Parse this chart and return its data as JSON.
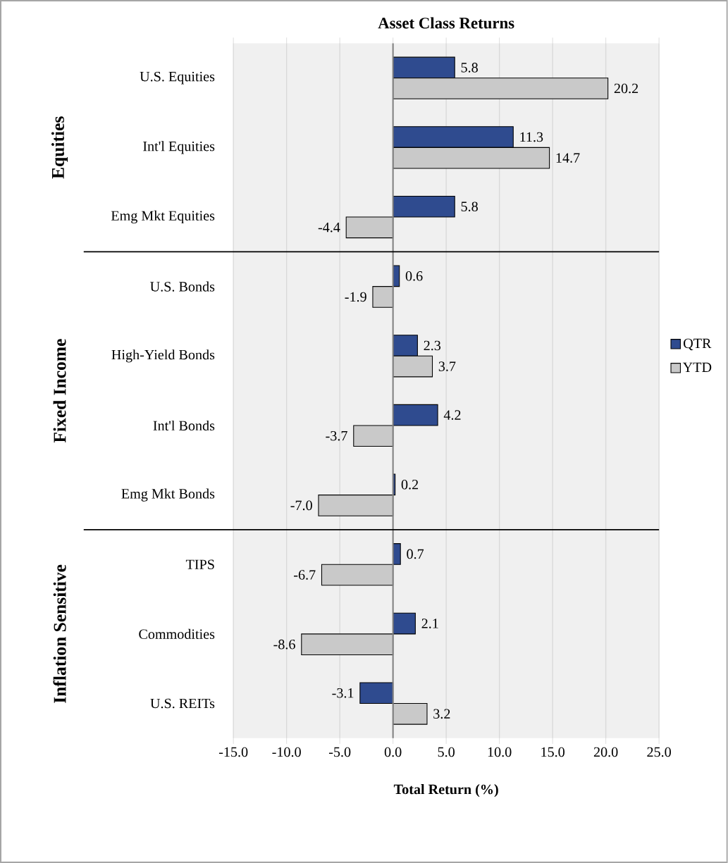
{
  "chart_data": {
    "type": "bar",
    "orientation": "horizontal",
    "title": "Asset Class Returns",
    "xlabel": "Total Return (%)",
    "categories": [
      "U.S. Equities",
      "Int'l Equities",
      "Emg Mkt Equities",
      "U.S. Bonds",
      "High-Yield Bonds",
      "Int'l Bonds",
      "Emg Mkt Bonds",
      "TIPS",
      "Commodities",
      "U.S. REITs"
    ],
    "series": [
      {
        "name": "QTR",
        "color": "#2f4b8f",
        "values": [
          5.8,
          11.3,
          5.8,
          0.6,
          2.3,
          4.2,
          0.2,
          0.7,
          2.1,
          -3.1
        ],
        "value_labels": [
          "5.8",
          "11.3",
          "5.8",
          "0.6",
          "2.3",
          "4.2",
          "0.2",
          "0.7",
          "2.1",
          "-3.1"
        ]
      },
      {
        "name": "YTD",
        "color": "#c9c9c9",
        "values": [
          20.2,
          14.7,
          -4.4,
          -1.9,
          3.7,
          -3.7,
          -7.0,
          -6.7,
          -8.6,
          3.2
        ],
        "value_labels": [
          "20.2",
          "14.7",
          "-4.4",
          "-1.9",
          "3.7",
          "-3.7",
          "-7.0",
          "-6.7",
          "-8.6",
          "3.2"
        ]
      }
    ],
    "xlim": [
      -15,
      25
    ],
    "xticks": [
      {
        "value": -15,
        "label": "-15.0"
      },
      {
        "value": -10,
        "label": "-10.0"
      },
      {
        "value": -5,
        "label": "-5.0"
      },
      {
        "value": 0,
        "label": "0.0"
      },
      {
        "value": 5,
        "label": "5.0"
      },
      {
        "value": 10,
        "label": "10.0"
      },
      {
        "value": 15,
        "label": "15.0"
      },
      {
        "value": 20,
        "label": "20.0"
      },
      {
        "value": 25,
        "label": "25.0"
      }
    ],
    "annotations": [
      "Equities",
      "Fixed Income",
      "Inflation Sensitive"
    ],
    "grid": "x",
    "legend": "right"
  }
}
